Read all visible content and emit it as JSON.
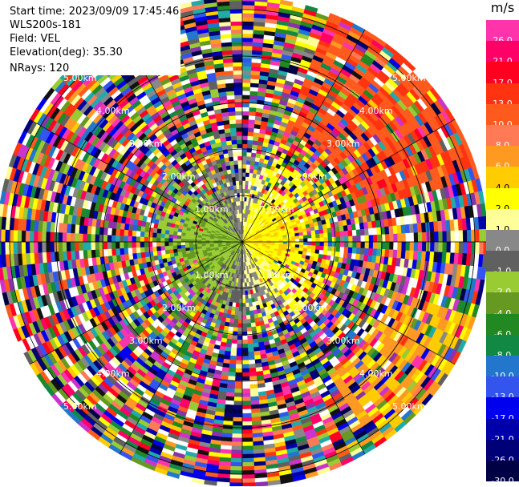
{
  "header": {
    "start_time": "Start time: 2023/09/09 17:45:46",
    "station": "WLS200s-181",
    "field": "Field: VEL",
    "elevation": "Elevation(deg): 35.30",
    "nrays": "NRays: 120"
  },
  "colorbar": {
    "unit": "m/s",
    "levels": [
      {
        "label": "26.0",
        "color": "#ff33aa"
      },
      {
        "label": "21.0",
        "color": "#ff0066"
      },
      {
        "label": "17.0",
        "color": "#ff0020"
      },
      {
        "label": "13.0",
        "color": "#ff3310"
      },
      {
        "label": "10.0",
        "color": "#ff5a1e"
      },
      {
        "label": "8.0",
        "color": "#ff7a55"
      },
      {
        "label": "6.0",
        "color": "#ff9922"
      },
      {
        "label": "4.0",
        "color": "#ffcc00"
      },
      {
        "label": "2.0",
        "color": "#ffff00"
      },
      {
        "label": "1.0",
        "color": "#ffff99"
      },
      {
        "label": "0.0",
        "color": "#888888"
      },
      {
        "label": "-1.0",
        "color": "#606060"
      },
      {
        "label": "-2.0",
        "color": "#99cc33"
      },
      {
        "label": "-4.0",
        "color": "#669922"
      },
      {
        "label": "-6.0",
        "color": "#228822"
      },
      {
        "label": "-8.0",
        "color": "#118844"
      },
      {
        "label": "-10.0",
        "color": "#2277cc"
      },
      {
        "label": "-13.0",
        "color": "#3355ee"
      },
      {
        "label": "-17.0",
        "color": "#0000ee"
      },
      {
        "label": "-21.0",
        "color": "#0000aa"
      },
      {
        "label": "-26.0",
        "color": "#000077"
      },
      {
        "label": "-30.0",
        "color": "#000044"
      }
    ]
  },
  "range_rings": [
    {
      "label": "1.00km"
    },
    {
      "label": "2.00km"
    },
    {
      "label": "3.00km"
    },
    {
      "label": "4.00km"
    },
    {
      "label": "5.00km"
    }
  ],
  "palette_extra": {
    "white": "#ffffff",
    "black": "#111111",
    "purple": "#8833aa",
    "magenta": "#cc33cc",
    "teal": "#22aaaa"
  }
}
